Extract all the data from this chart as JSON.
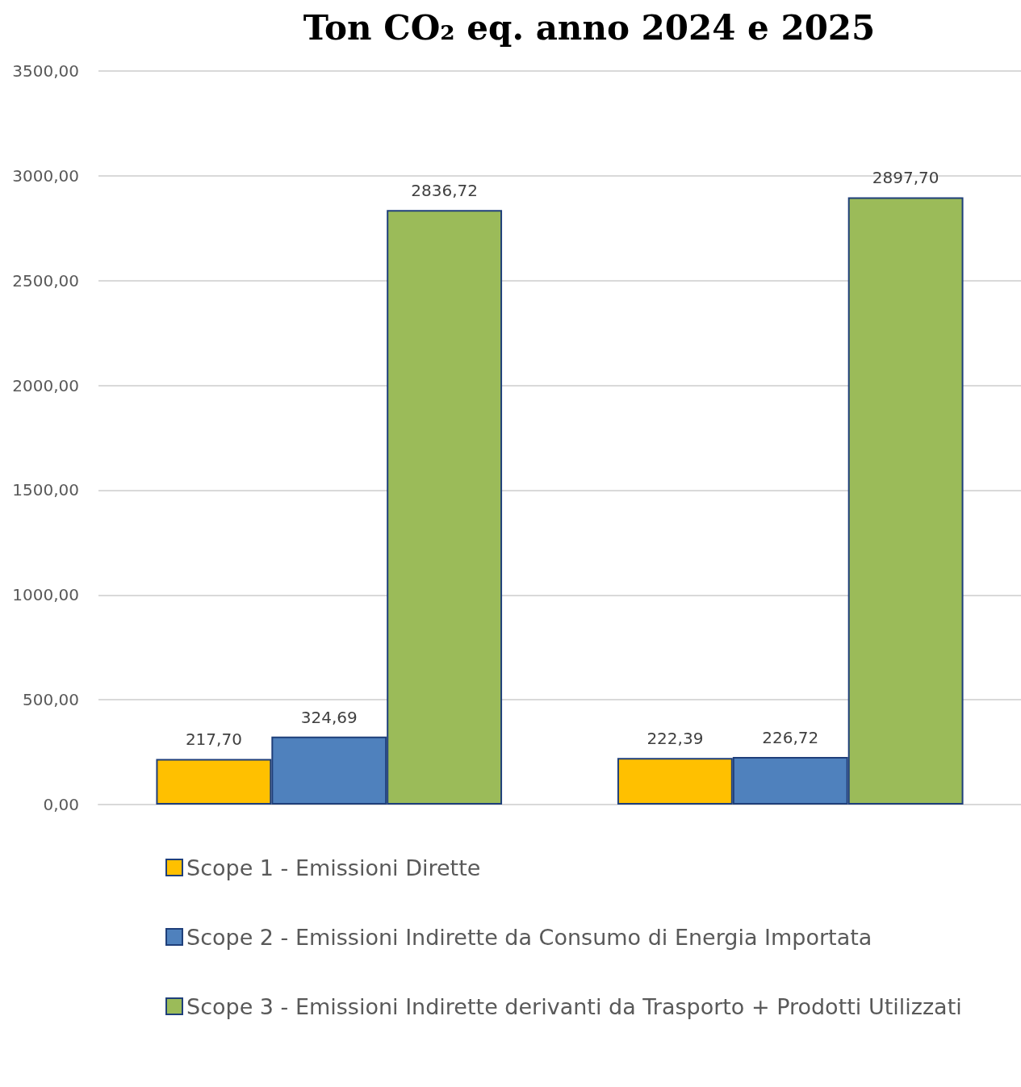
{
  "chart_data": {
    "type": "bar",
    "title": "Ton CO₂ eq. anno 2024 e 2025",
    "categories": [
      null,
      null
    ],
    "series": [
      {
        "name": "Scope 1 - Emissioni Dirette",
        "color": "#ffc000",
        "values": [
          217.7,
          222.39
        ],
        "value_labels": [
          "217,70",
          "222,39"
        ]
      },
      {
        "name": "Scope 2 - Emissioni Indirette da Consumo di Energia Importata",
        "color": "#4f81bd",
        "values": [
          324.69,
          226.72
        ],
        "value_labels": [
          "324,69",
          "226,72"
        ]
      },
      {
        "name": "Scope 3 - Emissioni Indirette derivanti da Trasporto + Prodotti Utilizzati",
        "color": "#9bbb59",
        "values": [
          2836.72,
          2897.7
        ],
        "value_labels": [
          "2836,72",
          "2897,70"
        ]
      }
    ],
    "ylim": [
      0,
      3500
    ],
    "yticks": [
      {
        "value": 0,
        "label": "0,00"
      },
      {
        "value": 500,
        "label": "500,00"
      },
      {
        "value": 1000,
        "label": "1000,00"
      },
      {
        "value": 1500,
        "label": "1500,00"
      },
      {
        "value": 2000,
        "label": "2000,00"
      },
      {
        "value": 2500,
        "label": "2500,00"
      },
      {
        "value": 3000,
        "label": "3000,00"
      },
      {
        "value": 3500,
        "label": "3500,00"
      }
    ],
    "grid": "y",
    "legend": "bottom"
  }
}
